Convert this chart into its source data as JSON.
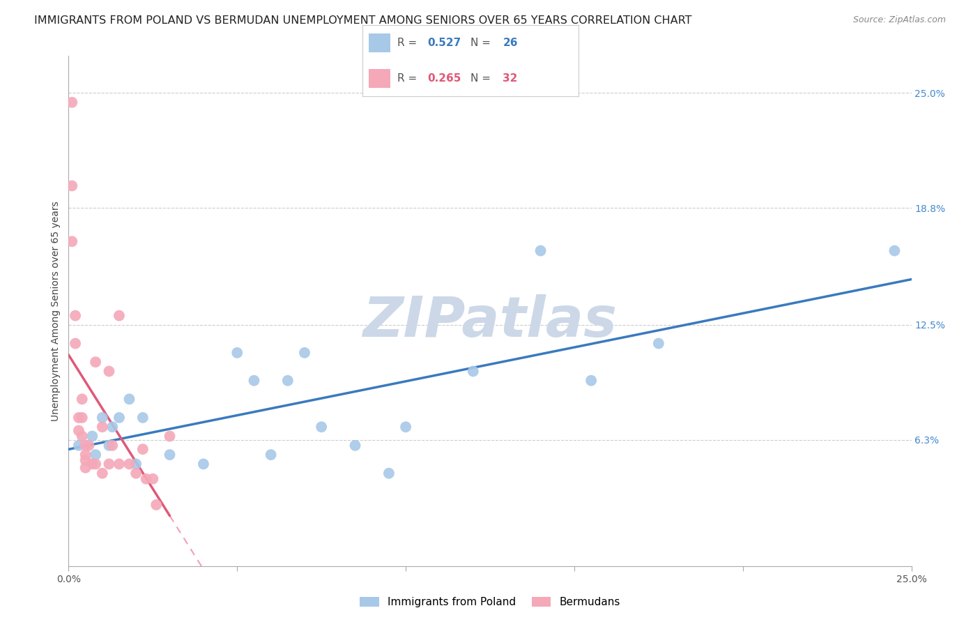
{
  "title": "IMMIGRANTS FROM POLAND VS BERMUDAN UNEMPLOYMENT AMONG SENIORS OVER 65 YEARS CORRELATION CHART",
  "source": "Source: ZipAtlas.com",
  "ylabel": "Unemployment Among Seniors over 65 years",
  "xlim": [
    0,
    0.25
  ],
  "ylim": [
    -0.005,
    0.27
  ],
  "ytick_labels_right": [
    "6.3%",
    "12.5%",
    "18.8%",
    "25.0%"
  ],
  "ytick_vals_right": [
    0.063,
    0.125,
    0.188,
    0.25
  ],
  "blue_color": "#a8c8e8",
  "pink_color": "#f4a8b8",
  "blue_line_color": "#3a7abf",
  "pink_line_color": "#e05878",
  "pink_dash_color": "#f0a0b8",
  "R_blue": 0.527,
  "N_blue": 26,
  "R_pink": 0.265,
  "N_pink": 32,
  "blue_x": [
    0.003,
    0.007,
    0.008,
    0.01,
    0.012,
    0.013,
    0.015,
    0.018,
    0.02,
    0.022,
    0.03,
    0.04,
    0.05,
    0.055,
    0.06,
    0.065,
    0.07,
    0.075,
    0.085,
    0.095,
    0.1,
    0.12,
    0.14,
    0.155,
    0.175,
    0.245
  ],
  "blue_y": [
    0.06,
    0.065,
    0.055,
    0.075,
    0.06,
    0.07,
    0.075,
    0.085,
    0.05,
    0.075,
    0.055,
    0.05,
    0.11,
    0.095,
    0.055,
    0.095,
    0.11,
    0.07,
    0.06,
    0.045,
    0.07,
    0.1,
    0.165,
    0.095,
    0.115,
    0.165
  ],
  "pink_x": [
    0.001,
    0.001,
    0.001,
    0.002,
    0.002,
    0.003,
    0.003,
    0.004,
    0.004,
    0.004,
    0.005,
    0.005,
    0.005,
    0.005,
    0.006,
    0.007,
    0.008,
    0.008,
    0.01,
    0.01,
    0.012,
    0.012,
    0.013,
    0.015,
    0.015,
    0.018,
    0.02,
    0.022,
    0.023,
    0.025,
    0.026,
    0.03
  ],
  "pink_y": [
    0.245,
    0.2,
    0.17,
    0.13,
    0.115,
    0.075,
    0.068,
    0.085,
    0.075,
    0.065,
    0.06,
    0.055,
    0.052,
    0.048,
    0.06,
    0.05,
    0.105,
    0.05,
    0.07,
    0.045,
    0.1,
    0.05,
    0.06,
    0.13,
    0.05,
    0.05,
    0.045,
    0.058,
    0.042,
    0.042,
    0.028,
    0.065
  ],
  "watermark": "ZIPatlas",
  "watermark_color": "#ccd8e8",
  "grid_color": "#cccccc",
  "background_color": "#ffffff",
  "title_fontsize": 11.5,
  "axis_fontsize": 10,
  "legend_fontsize": 11
}
